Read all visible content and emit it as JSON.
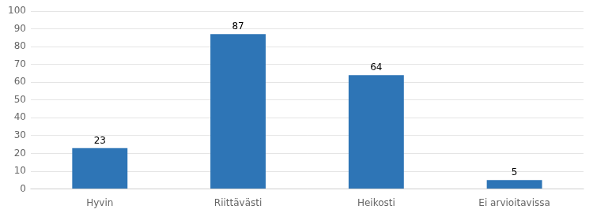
{
  "chart_data": {
    "type": "bar",
    "categories": [
      "Hyvin",
      "Riittävästi",
      "Heikosti",
      "Ei arvioitavissa"
    ],
    "values": [
      23,
      87,
      64,
      5
    ],
    "color": "#2E75B6",
    "ylim": [
      0,
      100
    ],
    "yticks": [
      0,
      10,
      20,
      30,
      40,
      50,
      60,
      70,
      80,
      90,
      100
    ],
    "grid": true,
    "data_labels": true
  }
}
